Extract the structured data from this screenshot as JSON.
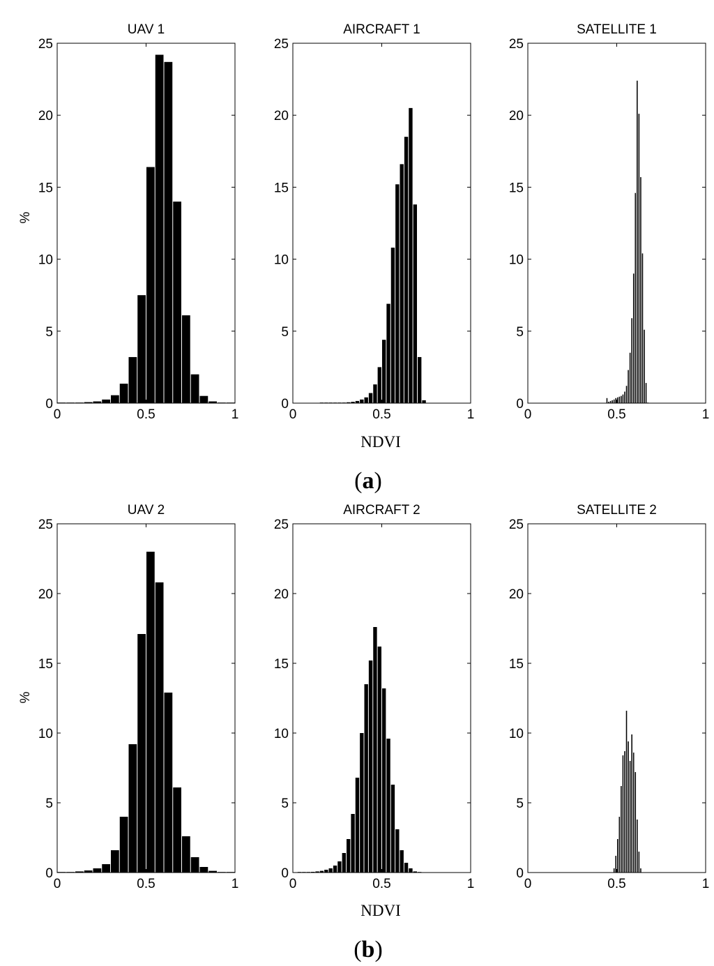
{
  "panels": [
    {
      "label": "a",
      "xlabel": "NDVI",
      "ylabel": "%"
    },
    {
      "label": "b",
      "xlabel": "NDVI",
      "ylabel": "%"
    }
  ],
  "chart_data": [
    {
      "type": "bar",
      "title": "UAV 1",
      "xlabel": "",
      "ylabel": "%",
      "xlim": [
        0,
        1
      ],
      "ylim": [
        0,
        25
      ],
      "xticks": [
        "0",
        "0.5",
        "1"
      ],
      "yticks": [
        "0",
        "5",
        "10",
        "15",
        "20",
        "25"
      ],
      "grid": false,
      "bar_color": "#000000",
      "bin_width": 0.05,
      "x": [
        0.025,
        0.075,
        0.125,
        0.175,
        0.225,
        0.275,
        0.325,
        0.375,
        0.425,
        0.475,
        0.525,
        0.575,
        0.625,
        0.675,
        0.725,
        0.775,
        0.825,
        0.875,
        0.925,
        0.975
      ],
      "values": [
        0.0,
        0.02,
        0.04,
        0.07,
        0.12,
        0.25,
        0.55,
        1.35,
        3.2,
        7.5,
        16.4,
        24.2,
        23.7,
        14.0,
        6.1,
        2.0,
        0.5,
        0.12,
        0.03,
        0.0
      ]
    },
    {
      "type": "bar",
      "title": "AIRCRAFT 1",
      "xlabel": "",
      "ylabel": "",
      "xlim": [
        0,
        1
      ],
      "ylim": [
        0,
        25
      ],
      "xticks": [
        "0",
        "0.5",
        "1"
      ],
      "yticks": [
        "0",
        "5",
        "10",
        "15",
        "20",
        "25"
      ],
      "grid": false,
      "bar_color": "#000000",
      "bin_width": 0.025,
      "x": [
        0.1625,
        0.1875,
        0.2125,
        0.2375,
        0.2625,
        0.2875,
        0.3125,
        0.3375,
        0.3625,
        0.3875,
        0.4125,
        0.4375,
        0.4625,
        0.4875,
        0.5125,
        0.5375,
        0.5625,
        0.5875,
        0.6125,
        0.6375,
        0.6625,
        0.6875,
        0.7125,
        0.7375
      ],
      "values": [
        0.01,
        0.01,
        0.02,
        0.02,
        0.03,
        0.04,
        0.06,
        0.09,
        0.15,
        0.25,
        0.4,
        0.7,
        1.3,
        2.5,
        4.4,
        6.9,
        10.8,
        15.2,
        16.6,
        18.5,
        20.5,
        13.8,
        3.2,
        0.2
      ]
    },
    {
      "type": "bar",
      "title": "SATELLITE 1",
      "xlabel": "",
      "ylabel": "",
      "xlim": [
        0,
        1
      ],
      "ylim": [
        0,
        25
      ],
      "xticks": [
        "0",
        "0.5",
        "1"
      ],
      "yticks": [
        "0",
        "5",
        "10",
        "15",
        "20",
        "25"
      ],
      "grid": false,
      "bar_color": "#000000",
      "bin_width": 0.01,
      "x": [
        0.445,
        0.455,
        0.465,
        0.475,
        0.485,
        0.495,
        0.505,
        0.515,
        0.525,
        0.535,
        0.545,
        0.555,
        0.565,
        0.575,
        0.585,
        0.595,
        0.605,
        0.615,
        0.625,
        0.635,
        0.645,
        0.655,
        0.665,
        0.675
      ],
      "values": [
        0.35,
        0.1,
        0.15,
        0.2,
        0.25,
        0.35,
        0.4,
        0.45,
        0.5,
        0.6,
        0.8,
        1.2,
        2.3,
        3.5,
        5.9,
        9.0,
        14.6,
        22.4,
        20.1,
        15.7,
        10.4,
        5.1,
        1.4,
        0.0
      ]
    },
    {
      "type": "bar",
      "title": "UAV 2",
      "xlabel": "",
      "ylabel": "%",
      "xlim": [
        0,
        1
      ],
      "ylim": [
        0,
        25
      ],
      "xticks": [
        "0",
        "0.5",
        "1"
      ],
      "yticks": [
        "0",
        "5",
        "10",
        "15",
        "20",
        "25"
      ],
      "grid": false,
      "bar_color": "#000000",
      "bin_width": 0.05,
      "x": [
        0.025,
        0.075,
        0.125,
        0.175,
        0.225,
        0.275,
        0.325,
        0.375,
        0.425,
        0.475,
        0.525,
        0.575,
        0.625,
        0.675,
        0.725,
        0.775,
        0.825,
        0.875,
        0.925,
        0.975
      ],
      "values": [
        0.02,
        0.04,
        0.08,
        0.15,
        0.3,
        0.6,
        1.6,
        4.0,
        9.2,
        17.1,
        23.0,
        20.8,
        12.9,
        6.1,
        2.6,
        1.1,
        0.4,
        0.12,
        0.03,
        0.0
      ]
    },
    {
      "type": "bar",
      "title": "AIRCRAFT 2",
      "xlabel": "",
      "ylabel": "",
      "xlim": [
        0,
        1
      ],
      "ylim": [
        0,
        25
      ],
      "xticks": [
        "0",
        "0.5",
        "1"
      ],
      "yticks": [
        "0",
        "5",
        "10",
        "15",
        "20",
        "25"
      ],
      "grid": false,
      "bar_color": "#000000",
      "bin_width": 0.025,
      "x": [
        0.0375,
        0.0625,
        0.0875,
        0.1125,
        0.1375,
        0.1625,
        0.1875,
        0.2125,
        0.2375,
        0.2625,
        0.2875,
        0.3125,
        0.3375,
        0.3625,
        0.3875,
        0.4125,
        0.4375,
        0.4625,
        0.4875,
        0.5125,
        0.5375,
        0.5625,
        0.5875,
        0.6125,
        0.6375,
        0.6625,
        0.6875,
        0.7125
      ],
      "values": [
        0.01,
        0.02,
        0.03,
        0.05,
        0.08,
        0.12,
        0.2,
        0.3,
        0.5,
        0.8,
        1.4,
        2.4,
        4.2,
        6.8,
        10.0,
        13.5,
        15.2,
        17.6,
        16.2,
        13.2,
        9.6,
        6.3,
        3.1,
        1.6,
        0.7,
        0.3,
        0.08,
        0.02
      ]
    },
    {
      "type": "bar",
      "title": "SATELLITE 2",
      "xlabel": "",
      "ylabel": "",
      "xlim": [
        0,
        1
      ],
      "ylim": [
        0,
        25
      ],
      "xticks": [
        "0",
        "0.5",
        "1"
      ],
      "yticks": [
        "0",
        "5",
        "10",
        "15",
        "20",
        "25"
      ],
      "grid": false,
      "bar_color": "#000000",
      "bin_width": 0.01,
      "x": [
        0.485,
        0.495,
        0.505,
        0.515,
        0.525,
        0.535,
        0.545,
        0.555,
        0.565,
        0.575,
        0.585,
        0.595,
        0.605,
        0.615,
        0.625,
        0.635
      ],
      "values": [
        0.3,
        1.2,
        2.4,
        4.0,
        6.2,
        8.4,
        8.7,
        11.6,
        9.4,
        8.0,
        9.9,
        8.6,
        7.2,
        3.8,
        1.5,
        0.3
      ]
    }
  ]
}
